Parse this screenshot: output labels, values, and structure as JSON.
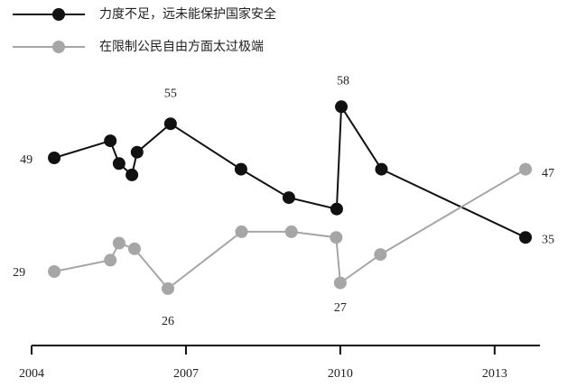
{
  "chart_data": {
    "type": "line",
    "x": [
      2004.44,
      2005.53,
      2005.7,
      2005.95,
      2006.05,
      2006.7,
      2008.07,
      2009.0,
      2009.93,
      2010.02,
      2010.8,
      2013.6
    ],
    "series": [
      {
        "name": "力度不足，远未能保护国家安全",
        "color": "#111111",
        "x": [
          2004.44,
          2005.53,
          2005.7,
          2005.95,
          2006.05,
          2006.7,
          2008.07,
          2009.0,
          2009.93,
          2010.02,
          2010.8,
          2013.6
        ],
        "values": [
          49,
          52,
          48,
          46,
          50,
          55,
          47,
          42,
          40,
          58,
          47,
          35
        ],
        "label_points": [
          0,
          5,
          9,
          11
        ]
      },
      {
        "name": "在限制公民自由方面太过极端",
        "color": "#a6a6a6",
        "x": [
          2004.44,
          2005.53,
          2005.7,
          2006.0,
          2006.65,
          2008.08,
          2009.05,
          2009.92,
          2010.0,
          2010.78,
          2013.6
        ],
        "values": [
          29,
          31,
          34,
          33,
          26,
          36,
          36,
          35,
          27,
          32,
          47
        ],
        "label_points": [
          0,
          4,
          8,
          10
        ]
      }
    ],
    "xlim": [
      2004,
      2013.88
    ],
    "xticks": [
      2004,
      2007,
      2010,
      2013
    ],
    "ylim": [
      20,
      60
    ]
  }
}
